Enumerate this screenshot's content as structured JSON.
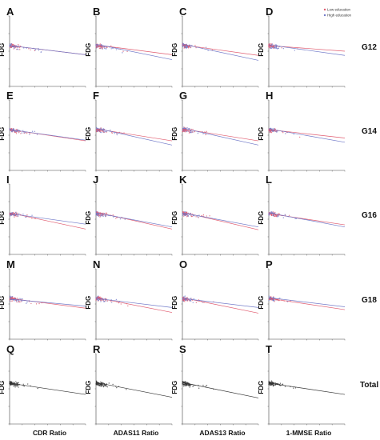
{
  "figure": {
    "column_xlabels": [
      "CDR Ratio",
      "ADAS11 Ratio",
      "ADAS13 Ratio",
      "1-MMSE Ratio"
    ],
    "row_labels": [
      "G12",
      "G14",
      "G16",
      "G18",
      "Total"
    ],
    "ylabel": "FDG",
    "legend": [
      {
        "label": "Low education",
        "color": "#e05a6e"
      },
      {
        "label": "High education",
        "color": "#6f78c8"
      }
    ],
    "colors": {
      "low": "#e05a6e",
      "high": "#6f78c8",
      "total": "#333333",
      "axis": "#444444"
    }
  },
  "chart_data": [
    {
      "panel": "A",
      "type": "scatter",
      "row": "G12",
      "xlabel": "CDR Ratio",
      "ylabel": "FDG",
      "xlim": [
        0,
        1.5
      ],
      "ylim": [
        0.5,
        1.5
      ],
      "series": [
        {
          "name": "Low education",
          "line": [
            [
              0,
              1.08
            ],
            [
              1.5,
              0.95
            ]
          ]
        },
        {
          "name": "High education",
          "line": [
            [
              0,
              1.08
            ],
            [
              1.5,
              0.95
            ]
          ]
        }
      ]
    },
    {
      "panel": "B",
      "type": "scatter",
      "row": "G12",
      "xlabel": "ADAS11 Ratio",
      "ylabel": "FDG",
      "xlim": [
        0,
        1.5
      ],
      "ylim": [
        0.5,
        1.5
      ],
      "series": [
        {
          "name": "Low education",
          "line": [
            [
              0,
              1.09
            ],
            [
              1.5,
              0.95
            ]
          ]
        },
        {
          "name": "High education",
          "line": [
            [
              0,
              1.1
            ],
            [
              1.5,
              0.88
            ]
          ]
        }
      ]
    },
    {
      "panel": "C",
      "type": "scatter",
      "row": "G12",
      "xlabel": "ADAS13 Ratio",
      "ylabel": "FDG",
      "xlim": [
        0,
        1.5
      ],
      "ylim": [
        0.5,
        1.5
      ],
      "series": [
        {
          "name": "Low education",
          "line": [
            [
              0,
              1.09
            ],
            [
              1.5,
              0.94
            ]
          ]
        },
        {
          "name": "High education",
          "line": [
            [
              0,
              1.1
            ],
            [
              1.5,
              0.87
            ]
          ]
        }
      ]
    },
    {
      "panel": "D",
      "type": "scatter",
      "row": "G12",
      "xlabel": "1-MMSE Ratio",
      "ylabel": "FDG",
      "xlim": [
        0,
        1.5
      ],
      "ylim": [
        0.5,
        1.5
      ],
      "series": [
        {
          "name": "Low education",
          "line": [
            [
              0,
              1.08
            ],
            [
              1.5,
              1.0
            ]
          ]
        },
        {
          "name": "High education",
          "line": [
            [
              0,
              1.09
            ],
            [
              1.5,
              0.94
            ]
          ]
        }
      ]
    },
    {
      "panel": "E",
      "type": "scatter",
      "row": "G14",
      "xlabel": "CDR Ratio",
      "ylabel": "FDG",
      "xlim": [
        0,
        1.5
      ],
      "ylim": [
        0.5,
        1.5
      ],
      "series": [
        {
          "name": "Low education",
          "line": [
            [
              0,
              1.08
            ],
            [
              1.5,
              0.92
            ]
          ]
        },
        {
          "name": "High education",
          "line": [
            [
              0,
              1.08
            ],
            [
              1.5,
              0.93
            ]
          ]
        }
      ]
    },
    {
      "panel": "F",
      "type": "scatter",
      "row": "G14",
      "xlabel": "ADAS11 Ratio",
      "ylabel": "FDG",
      "xlim": [
        0,
        1.5
      ],
      "ylim": [
        0.5,
        1.5
      ],
      "series": [
        {
          "name": "Low education",
          "line": [
            [
              0,
              1.09
            ],
            [
              1.5,
              0.92
            ]
          ]
        },
        {
          "name": "High education",
          "line": [
            [
              0,
              1.1
            ],
            [
              1.5,
              0.86
            ]
          ]
        }
      ]
    },
    {
      "panel": "G",
      "type": "scatter",
      "row": "G14",
      "xlabel": "ADAS13 Ratio",
      "ylabel": "FDG",
      "xlim": [
        0,
        1.5
      ],
      "ylim": [
        0.5,
        1.5
      ],
      "series": [
        {
          "name": "Low education",
          "line": [
            [
              0,
              1.09
            ],
            [
              1.5,
              0.92
            ]
          ]
        },
        {
          "name": "High education",
          "line": [
            [
              0,
              1.1
            ],
            [
              1.5,
              0.86
            ]
          ]
        }
      ]
    },
    {
      "panel": "H",
      "type": "scatter",
      "row": "G14",
      "xlabel": "1-MMSE Ratio",
      "ylabel": "FDG",
      "xlim": [
        0,
        1.5
      ],
      "ylim": [
        0.5,
        1.5
      ],
      "series": [
        {
          "name": "Low education",
          "line": [
            [
              0,
              1.08
            ],
            [
              1.5,
              0.96
            ]
          ]
        },
        {
          "name": "High education",
          "line": [
            [
              0,
              1.09
            ],
            [
              1.5,
              0.9
            ]
          ]
        }
      ]
    },
    {
      "panel": "I",
      "type": "scatter",
      "row": "G16",
      "xlabel": "CDR Ratio",
      "ylabel": "FDG",
      "xlim": [
        0,
        1.5
      ],
      "ylim": [
        0.5,
        1.5
      ],
      "series": [
        {
          "name": "Low education",
          "line": [
            [
              0,
              1.09
            ],
            [
              1.5,
              0.86
            ]
          ]
        },
        {
          "name": "High education",
          "line": [
            [
              0,
              1.08
            ],
            [
              1.5,
              0.93
            ]
          ]
        }
      ]
    },
    {
      "panel": "J",
      "type": "scatter",
      "row": "G16",
      "xlabel": "ADAS11 Ratio",
      "ylabel": "FDG",
      "xlim": [
        0,
        1.5
      ],
      "ylim": [
        0.5,
        1.5
      ],
      "series": [
        {
          "name": "Low education",
          "line": [
            [
              0,
              1.1
            ],
            [
              1.5,
              0.86
            ]
          ]
        },
        {
          "name": "High education",
          "line": [
            [
              0,
              1.09
            ],
            [
              1.5,
              0.89
            ]
          ]
        }
      ]
    },
    {
      "panel": "K",
      "type": "scatter",
      "row": "G16",
      "xlabel": "ADAS13 Ratio",
      "ylabel": "FDG",
      "xlim": [
        0,
        1.5
      ],
      "ylim": [
        0.5,
        1.5
      ],
      "series": [
        {
          "name": "Low education",
          "line": [
            [
              0,
              1.1
            ],
            [
              1.5,
              0.85
            ]
          ]
        },
        {
          "name": "High education",
          "line": [
            [
              0,
              1.09
            ],
            [
              1.5,
              0.89
            ]
          ]
        }
      ]
    },
    {
      "panel": "L",
      "type": "scatter",
      "row": "G16",
      "xlabel": "1-MMSE Ratio",
      "ylabel": "FDG",
      "xlim": [
        0,
        1.5
      ],
      "ylim": [
        0.5,
        1.5
      ],
      "series": [
        {
          "name": "Low education",
          "line": [
            [
              0,
              1.08
            ],
            [
              1.5,
              0.92
            ]
          ]
        },
        {
          "name": "High education",
          "line": [
            [
              0,
              1.09
            ],
            [
              1.5,
              0.89
            ]
          ]
        }
      ]
    },
    {
      "panel": "M",
      "type": "scatter",
      "row": "G18",
      "xlabel": "CDR Ratio",
      "ylabel": "FDG",
      "xlim": [
        0,
        1.5
      ],
      "ylim": [
        0.5,
        1.5
      ],
      "series": [
        {
          "name": "Low education",
          "line": [
            [
              0,
              1.08
            ],
            [
              1.5,
              0.94
            ]
          ]
        },
        {
          "name": "High education",
          "line": [
            [
              0,
              1.07
            ],
            [
              1.5,
              0.97
            ]
          ]
        }
      ]
    },
    {
      "panel": "N",
      "type": "scatter",
      "row": "G18",
      "xlabel": "ADAS11 Ratio",
      "ylabel": "FDG",
      "xlim": [
        0,
        1.5
      ],
      "ylim": [
        0.5,
        1.5
      ],
      "series": [
        {
          "name": "Low education",
          "line": [
            [
              0,
              1.09
            ],
            [
              1.5,
              0.88
            ]
          ]
        },
        {
          "name": "High education",
          "line": [
            [
              0,
              1.08
            ],
            [
              1.5,
              0.95
            ]
          ]
        }
      ]
    },
    {
      "panel": "O",
      "type": "scatter",
      "row": "G18",
      "xlabel": "ADAS13 Ratio",
      "ylabel": "FDG",
      "xlim": [
        0,
        1.5
      ],
      "ylim": [
        0.5,
        1.5
      ],
      "series": [
        {
          "name": "Low education",
          "line": [
            [
              0,
              1.09
            ],
            [
              1.5,
              0.87
            ]
          ]
        },
        {
          "name": "High education",
          "line": [
            [
              0,
              1.08
            ],
            [
              1.5,
              0.95
            ]
          ]
        }
      ]
    },
    {
      "panel": "P",
      "type": "scatter",
      "row": "G18",
      "xlabel": "1-MMSE Ratio",
      "ylabel": "FDG",
      "xlim": [
        0,
        1.5
      ],
      "ylim": [
        0.5,
        1.5
      ],
      "series": [
        {
          "name": "Low education",
          "line": [
            [
              0,
              1.08
            ],
            [
              1.5,
              0.92
            ]
          ]
        },
        {
          "name": "High education",
          "line": [
            [
              0,
              1.09
            ],
            [
              1.5,
              0.96
            ]
          ]
        }
      ]
    },
    {
      "panel": "Q",
      "type": "scatter",
      "row": "Total",
      "xlabel": "CDR Ratio",
      "ylabel": "FDG",
      "xlim": [
        0,
        1.5
      ],
      "ylim": [
        0.5,
        1.5
      ],
      "series": [
        {
          "name": "",
          "line": [
            [
              0,
              1.08
            ],
            [
              1.5,
              0.92
            ]
          ]
        }
      ]
    },
    {
      "panel": "R",
      "type": "scatter",
      "row": "Total",
      "xlabel": "ADAS11 Ratio",
      "ylabel": "FDG",
      "xlim": [
        0,
        1.5
      ],
      "ylim": [
        0.5,
        1.5
      ],
      "series": [
        {
          "name": "",
          "line": [
            [
              0,
              1.09
            ],
            [
              1.5,
              0.88
            ]
          ]
        }
      ]
    },
    {
      "panel": "S",
      "type": "scatter",
      "row": "Total",
      "xlabel": "ADAS13 Ratio",
      "ylabel": "FDG",
      "xlim": [
        0,
        1.5
      ],
      "ylim": [
        0.5,
        1.5
      ],
      "series": [
        {
          "name": "",
          "line": [
            [
              0,
              1.09
            ],
            [
              1.5,
              0.87
            ]
          ]
        }
      ]
    },
    {
      "panel": "T",
      "type": "scatter",
      "row": "Total",
      "xlabel": "1-MMSE Ratio",
      "ylabel": "FDG",
      "xlim": [
        0,
        1.5
      ],
      "ylim": [
        0.5,
        1.5
      ],
      "series": [
        {
          "name": "",
          "line": [
            [
              0,
              1.08
            ],
            [
              1.5,
              0.92
            ]
          ]
        }
      ]
    }
  ]
}
